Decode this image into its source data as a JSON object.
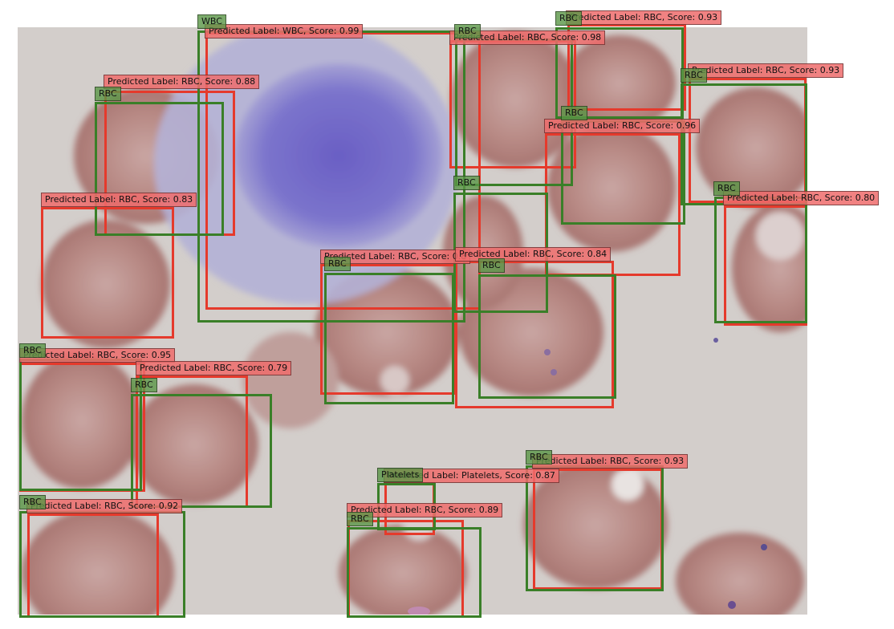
{
  "image": {
    "description_icon": "blood-smear-microscopy",
    "pred_color": "#e53a2c",
    "gt_color": "#3a7f28"
  },
  "predictions": [
    {
      "label": "Predicted Label: WBC, Score: 0.99"
    },
    {
      "label": "Predicted Label: RBC, Score: 0.98"
    },
    {
      "label": "Predicted Label: RBC, Score: 0.93"
    },
    {
      "label": "Predicted Label: RBC, Score: 0.88"
    },
    {
      "label": "Predicted Label: RBC, Score: 0.93"
    },
    {
      "label": "Predicted Label: RBC, Score: 0.96"
    },
    {
      "label": "Predicted Label: RBC, Score: 0.83"
    },
    {
      "label": "Predicted Label: RBC, Score: 0.80"
    },
    {
      "label": "Predicted Label: RBC, Score: 0.8"
    },
    {
      "label": "Predicted Label: RBC, Score: 0.84"
    },
    {
      "label": "Predicted Label: RBC, Score: 0.95"
    },
    {
      "label": "Predicted Label: RBC, Score: 0.79"
    },
    {
      "label": "Predicted Label: RBC, Score: 0.93"
    },
    {
      "label": "Predicted Label: Platelets, Score: 0.87"
    },
    {
      "label": "Predicted Label: RBC, Score: 0.92"
    },
    {
      "label": "Predicted Label: RBC, Score: 0.89"
    }
  ],
  "ground_truth": [
    {
      "label": "WBC"
    },
    {
      "label": "RBC"
    },
    {
      "label": "RBC"
    },
    {
      "label": "RBC"
    },
    {
      "label": "RBC"
    },
    {
      "label": "RBC"
    },
    {
      "label": "RBC"
    },
    {
      "label": "RBC"
    },
    {
      "label": "RBC"
    },
    {
      "label": "RBC"
    },
    {
      "label": "RBC"
    },
    {
      "label": "RBC"
    },
    {
      "label": "RBC"
    },
    {
      "label": "Platelets"
    },
    {
      "label": "RBC"
    },
    {
      "label": "RBC"
    }
  ]
}
